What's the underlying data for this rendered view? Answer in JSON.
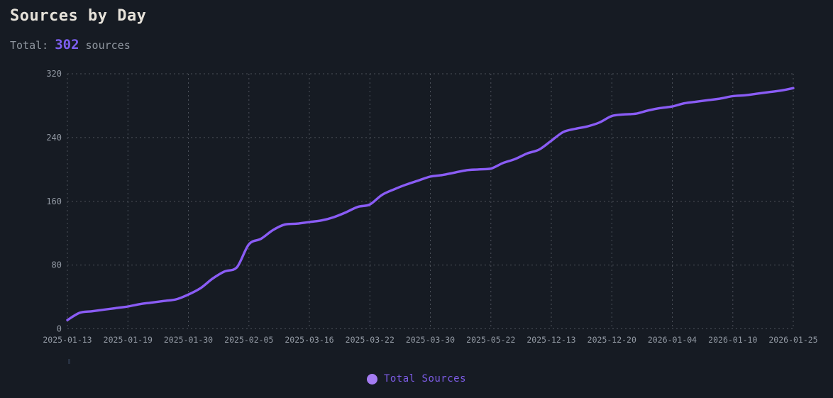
{
  "header": {
    "title": "Sources by Day",
    "total_label": "Total:",
    "total_value": "302",
    "total_suffix": "sources"
  },
  "legend": {
    "label": "Total Sources"
  },
  "colors": {
    "background": "#161b23",
    "accent_line": "#8a5cf5",
    "legend_dot": "#a47cf2",
    "legend_text": "#7d5ce6",
    "total_value_text": "#7d5ff0",
    "grid": "#4c515a",
    "tick_text": "#939aa4",
    "title_text": "#e6e2da"
  },
  "chart_data": {
    "type": "line",
    "title": "Sources by Day",
    "xlabel": "",
    "ylabel": "",
    "ylim": [
      0,
      320
    ],
    "y_ticks": [
      0,
      80,
      160,
      240,
      320
    ],
    "grid": true,
    "legend_position": "bottom",
    "x_tick_labels": [
      "2025-01-13",
      "2025-01-19",
      "2025-01-30",
      "2025-02-05",
      "2025-03-16",
      "2025-03-22",
      "2025-03-30",
      "2025-05-22",
      "2025-12-13",
      "2025-12-20",
      "2026-01-04",
      "2026-01-10",
      "2026-01-25"
    ],
    "x_tick_every": 5,
    "series": [
      {
        "name": "Total Sources",
        "values": [
          11,
          20,
          22,
          24,
          26,
          28,
          31,
          33,
          35,
          37,
          43,
          51,
          63,
          72,
          77,
          106,
          113,
          124,
          131,
          132,
          134,
          136,
          140,
          146,
          153,
          156,
          168,
          175,
          181,
          186,
          191,
          193,
          196,
          199,
          200,
          201,
          208,
          213,
          220,
          225,
          236,
          247,
          251,
          254,
          259,
          267,
          269,
          270,
          274,
          277,
          279,
          283,
          285,
          287,
          289,
          292,
          293,
          295,
          297,
          299,
          302
        ]
      }
    ]
  }
}
